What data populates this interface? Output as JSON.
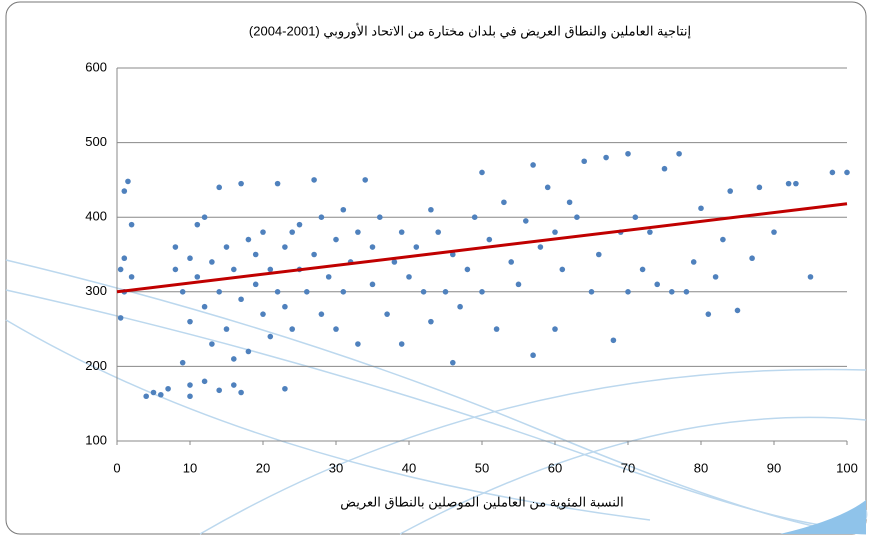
{
  "chart_data": {
    "type": "scatter",
    "title": "إنتاجية العاملين والنطاق العريض في بلدان مختارة من الاتحاد الأوروبي (2001-2004)",
    "x_label": "النسبة المئوية من العاملين الموصلين بالنطاق العريض",
    "xlim": [
      0,
      100
    ],
    "xticks": [
      0,
      10,
      20,
      30,
      40,
      50,
      60,
      70,
      80,
      90,
      100
    ],
    "ylim": [
      100,
      600
    ],
    "yticks": [
      100,
      200,
      300,
      400,
      500,
      600
    ],
    "grid": true,
    "series": [
      {
        "color": "#4f81bd",
        "x": [
          0.5,
          1,
          1,
          1.5,
          2,
          1,
          0.5,
          2,
          4,
          5,
          6,
          7,
          8,
          9,
          10,
          10,
          12,
          14,
          16,
          17,
          23,
          8,
          9,
          10,
          10,
          11,
          11,
          12,
          12,
          13,
          13,
          14,
          14,
          15,
          15,
          16,
          16,
          17,
          17,
          18,
          18,
          19,
          19,
          20,
          20,
          21,
          21,
          22,
          22,
          23,
          23,
          24,
          24,
          25,
          25,
          26,
          27,
          27,
          28,
          28,
          29,
          30,
          30,
          31,
          31,
          32,
          33,
          33,
          34,
          35,
          35,
          36,
          37,
          38,
          39,
          39,
          40,
          41,
          42,
          43,
          43,
          44,
          45,
          46,
          46,
          47,
          48,
          49,
          50,
          50,
          51,
          52,
          53,
          54,
          55,
          56,
          57,
          57,
          58,
          59,
          60,
          60,
          61,
          62,
          63,
          64,
          65,
          66,
          67,
          68,
          69,
          70,
          70,
          71,
          72,
          73,
          74,
          75,
          76,
          77,
          78,
          79,
          80,
          81,
          82,
          83,
          84,
          85,
          87,
          88,
          90,
          92,
          93,
          95,
          98,
          100
        ],
        "values": [
          330,
          345,
          435,
          448,
          320,
          300,
          265,
          390,
          160,
          165,
          162,
          170,
          330,
          205,
          160,
          175,
          180,
          168,
          175,
          165,
          170,
          360,
          300,
          260,
          345,
          390,
          320,
          400,
          280,
          230,
          340,
          440,
          300,
          360,
          250,
          210,
          330,
          445,
          290,
          370,
          220,
          310,
          350,
          270,
          380,
          330,
          240,
          445,
          300,
          360,
          280,
          380,
          250,
          330,
          390,
          300,
          350,
          450,
          400,
          270,
          320,
          370,
          250,
          410,
          300,
          340,
          380,
          230,
          450,
          310,
          360,
          400,
          270,
          340,
          380,
          230,
          320,
          360,
          300,
          410,
          260,
          380,
          300,
          205,
          350,
          280,
          330,
          400,
          300,
          460,
          370,
          250,
          420,
          340,
          310,
          395,
          215,
          470,
          360,
          440,
          380,
          250,
          330,
          420,
          400,
          475,
          300,
          350,
          480,
          235,
          380,
          300,
          485,
          400,
          330,
          380,
          310,
          465,
          300,
          485,
          300,
          340,
          412,
          270,
          320,
          370,
          435,
          275,
          345,
          440,
          380,
          445,
          445,
          320,
          460,
          460
        ]
      }
    ],
    "trendline": {
      "color": "#c00000",
      "x": [
        0,
        100
      ],
      "values": [
        300,
        418
      ]
    }
  }
}
